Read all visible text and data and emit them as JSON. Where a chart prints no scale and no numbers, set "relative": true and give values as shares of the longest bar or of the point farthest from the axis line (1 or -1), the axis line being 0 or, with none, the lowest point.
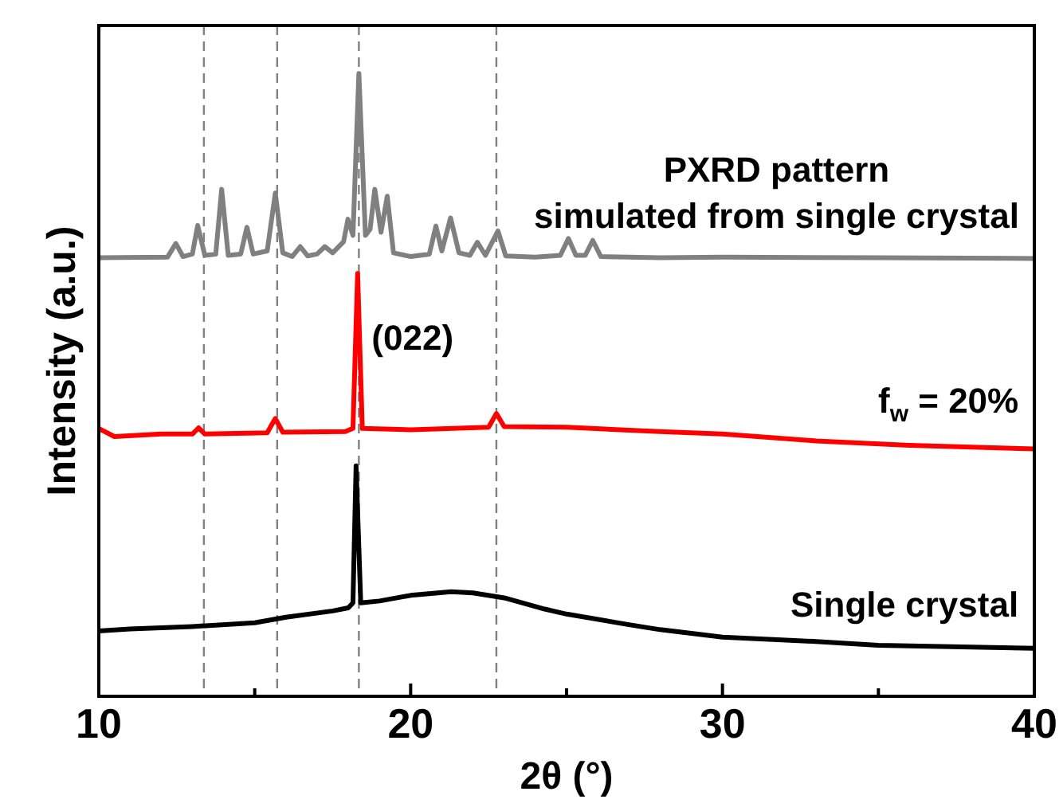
{
  "chart_data": {
    "type": "line",
    "relative": true,
    "xlabel": "2θ (°)",
    "ylabel": "Intensity (a.u.)",
    "xlim": [
      10,
      40
    ],
    "xticks": [
      10,
      {
        "value": 15,
        "label": null
      },
      20,
      {
        "value": 25,
        "label": null
      },
      30,
      {
        "value": 35,
        "label": null
      },
      40
    ],
    "grid": false,
    "legend": false,
    "marker": "none",
    "line_style": "solid",
    "tick_labels": "x",
    "series": [
      {
        "name": "PXRD pattern\nsimulated from single crystal",
        "color": "#808080",
        "x": [
          10,
          12.2,
          12.47,
          12.7,
          13.0,
          13.17,
          13.4,
          13.75,
          13.94,
          14.15,
          14.55,
          14.75,
          14.95,
          15.4,
          15.66,
          15.9,
          16.2,
          16.46,
          16.7,
          17.0,
          17.25,
          17.5,
          17.85,
          17.99,
          18.15,
          18.34,
          18.55,
          18.7,
          18.85,
          19.05,
          19.25,
          19.45,
          20.0,
          20.6,
          20.81,
          21.0,
          21.28,
          21.55,
          21.9,
          22.14,
          22.4,
          22.8,
          23.05,
          24.0,
          24.8,
          25.06,
          25.3,
          25.6,
          25.84,
          26.1,
          28,
          30,
          35,
          40
        ],
        "values": [
          0.704,
          0.705,
          0.727,
          0.706,
          0.71,
          0.756,
          0.708,
          0.71,
          0.814,
          0.708,
          0.71,
          0.753,
          0.71,
          0.715,
          0.808,
          0.712,
          0.706,
          0.722,
          0.707,
          0.71,
          0.722,
          0.712,
          0.73,
          0.766,
          0.74,
          1.0,
          0.74,
          0.75,
          0.814,
          0.745,
          0.803,
          0.712,
          0.706,
          0.71,
          0.755,
          0.715,
          0.768,
          0.712,
          0.708,
          0.729,
          0.708,
          0.747,
          0.707,
          0.705,
          0.708,
          0.735,
          0.708,
          0.708,
          0.732,
          0.706,
          0.704,
          0.705,
          0.704,
          0.703
        ]
      },
      {
        "name": "f$_{w}$ = 20%",
        "color": "#ff0000",
        "x": [
          10,
          10.5,
          12,
          13.0,
          13.2,
          13.4,
          15.4,
          15.66,
          15.9,
          17.9,
          18.15,
          18.3,
          18.45,
          20,
          22.5,
          22.75,
          23.0,
          25,
          28,
          30,
          33,
          36,
          40
        ],
        "values": [
          0.43,
          0.417,
          0.421,
          0.421,
          0.431,
          0.421,
          0.423,
          0.446,
          0.424,
          0.425,
          0.43,
          0.679,
          0.43,
          0.428,
          0.432,
          0.454,
          0.433,
          0.432,
          0.425,
          0.421,
          0.41,
          0.403,
          0.397
        ]
      },
      {
        "name": "Single crystal",
        "color": "#000000",
        "x": [
          10,
          11,
          13,
          15,
          16,
          17.5,
          18.0,
          18.15,
          18.25,
          18.4,
          19,
          20,
          21.3,
          22,
          23,
          24.3,
          25,
          27,
          28,
          30,
          33,
          35,
          40
        ],
        "values": [
          0.105,
          0.108,
          0.112,
          0.118,
          0.127,
          0.137,
          0.142,
          0.15,
          0.37,
          0.15,
          0.153,
          0.162,
          0.168,
          0.166,
          0.158,
          0.14,
          0.132,
          0.115,
          0.107,
          0.095,
          0.088,
          0.082,
          0.077
        ]
      }
    ],
    "ref_lines": [
      {
        "axis": "x",
        "value": 13.37,
        "color": "#808080",
        "line_style": "dashed"
      },
      {
        "axis": "x",
        "value": 15.72,
        "color": "#808080",
        "line_style": "dashed"
      },
      {
        "axis": "x",
        "value": 18.34,
        "color": "#808080",
        "line_style": "dashed"
      },
      {
        "axis": "x",
        "value": 22.75,
        "color": "#808080",
        "line_style": "dashed"
      }
    ],
    "annotations": [
      {
        "text": "(022)",
        "x": 18.34,
        "y": 0.679
      }
    ]
  }
}
